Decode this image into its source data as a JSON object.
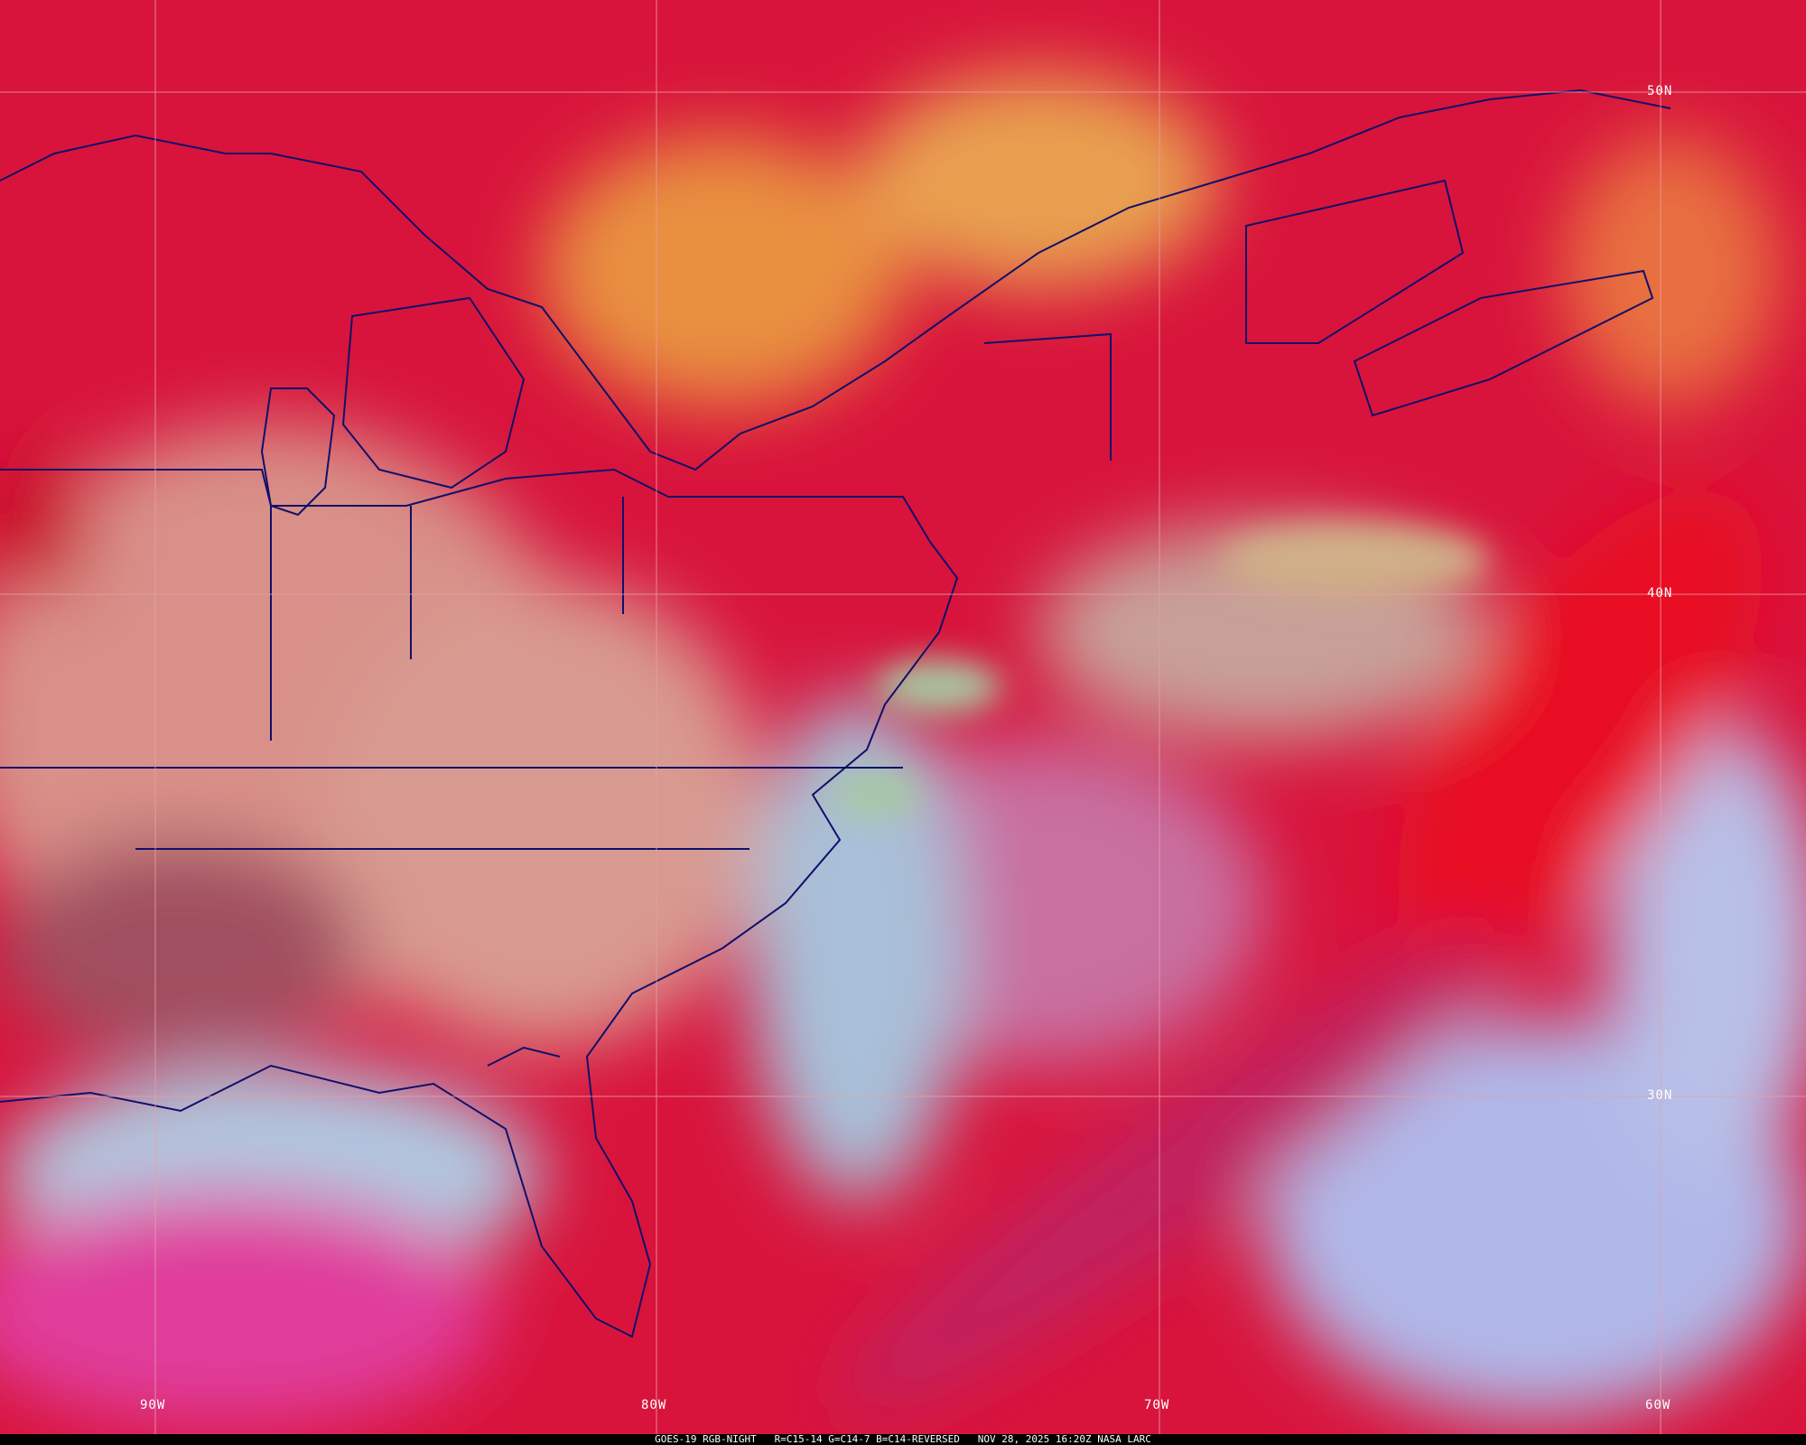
{
  "caption": {
    "satellite": "GOES-19",
    "product": "RGB-NIGHT",
    "recipe": "R=C15-14 G=C14-7 B=C14-REVERSED",
    "datetime": "NOV 28, 2025 16:20Z",
    "source": "NASA LARC"
  },
  "grid": {
    "longitudes": [
      "90W",
      "80W",
      "70W",
      "60W"
    ],
    "latitudes": [
      "50N",
      "40N",
      "30N"
    ],
    "line_color": "#e8a0a8"
  },
  "colors": {
    "clear_land": "#d89088",
    "low_cloud": "#a8c8a0",
    "high_cloud": "#d8143c",
    "ocean_low_cloud": "#a8b8e8",
    "mid_cloud": "#e89040",
    "borders": "#10106a"
  }
}
